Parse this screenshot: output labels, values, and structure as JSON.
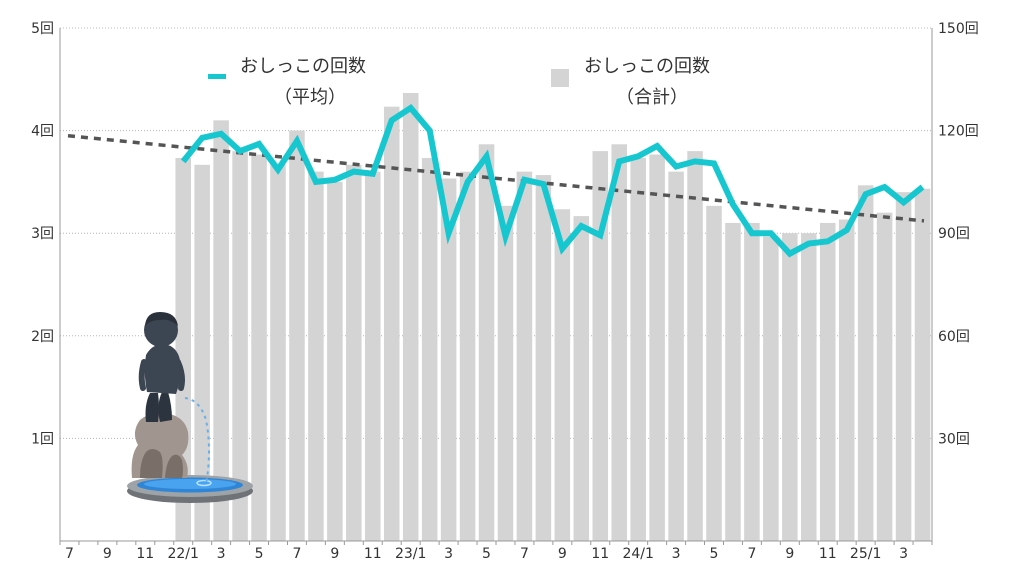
{
  "chart_data": {
    "type": "bar+line",
    "title": "",
    "grid": true,
    "legend_position": "top-center",
    "y_left": {
      "unit_suffix": "回",
      "ticks": [
        "1回",
        "2回",
        "3回",
        "4回",
        "5回"
      ],
      "min": 0,
      "max": 5
    },
    "y_right": {
      "ticks": [
        "30回",
        "60回",
        "90回",
        "120回",
        "150回"
      ],
      "min": 0,
      "max": 150
    },
    "x_tick_labels": [
      "7",
      "9",
      "11",
      "22/1",
      "3",
      "5",
      "7",
      "9",
      "11",
      "23/1",
      "3",
      "5",
      "7",
      "9",
      "11",
      "24/1",
      "3",
      "5",
      "7",
      "9",
      "11",
      "25/1",
      "3"
    ],
    "x_months": [
      "2021-07",
      "2021-08",
      "2021-09",
      "2021-10",
      "2021-11",
      "2021-12",
      "2022-01",
      "2022-02",
      "2022-03",
      "2022-04",
      "2022-05",
      "2022-06",
      "2022-07",
      "2022-08",
      "2022-09",
      "2022-10",
      "2022-11",
      "2022-12",
      "2023-01",
      "2023-02",
      "2023-03",
      "2023-04",
      "2023-05",
      "2023-06",
      "2023-07",
      "2023-08",
      "2023-09",
      "2023-10",
      "2023-11",
      "2023-12",
      "2024-01",
      "2024-02",
      "2024-03",
      "2024-04",
      "2024-05",
      "2024-06",
      "2024-07",
      "2024-08",
      "2024-09",
      "2024-10",
      "2024-11",
      "2024-12",
      "2025-01",
      "2025-02",
      "2025-03",
      "2025-04"
    ],
    "series": [
      {
        "name": "おしっこの回数（合計）",
        "kind": "bar",
        "axis": "right",
        "color": "#d4d4d4",
        "values": [
          null,
          null,
          null,
          null,
          null,
          null,
          112,
          110,
          123,
          114,
          113,
          110,
          120,
          108,
          105,
          110,
          108,
          127,
          131,
          112,
          106,
          108,
          116,
          98,
          108,
          107,
          97,
          95,
          114,
          116,
          112,
          113,
          108,
          114,
          98,
          93,
          93,
          89,
          90,
          90,
          93,
          94,
          104,
          96,
          102,
          103
        ]
      },
      {
        "name": "おしっこの回数（平均）",
        "kind": "line",
        "axis": "left",
        "color": "#17c7d0",
        "values": [
          null,
          null,
          null,
          null,
          null,
          null,
          3.7,
          3.93,
          3.97,
          3.8,
          3.87,
          3.62,
          3.9,
          3.5,
          3.52,
          3.6,
          3.58,
          4.1,
          4.22,
          4.0,
          3.0,
          3.5,
          3.75,
          2.97,
          3.52,
          3.48,
          2.85,
          3.07,
          2.98,
          3.7,
          3.75,
          3.85,
          3.65,
          3.7,
          3.68,
          3.28,
          3.0,
          3.0,
          2.8,
          2.9,
          2.92,
          3.03,
          3.38,
          3.45,
          3.3,
          3.45
        ]
      },
      {
        "name": "trend",
        "kind": "trendline",
        "axis": "left",
        "color": "#555555",
        "from": 3.95,
        "to": 3.12
      }
    ]
  },
  "legend": {
    "line_label": "おしっこの回数",
    "line_sub": "（平均）",
    "bar_label": "おしっこの回数",
    "bar_sub": "（合計）",
    "line_color": "#17c7d0",
    "bar_color": "#d4d4d4"
  },
  "illustration": {
    "icon": "manneken-pis-fountain-icon"
  }
}
